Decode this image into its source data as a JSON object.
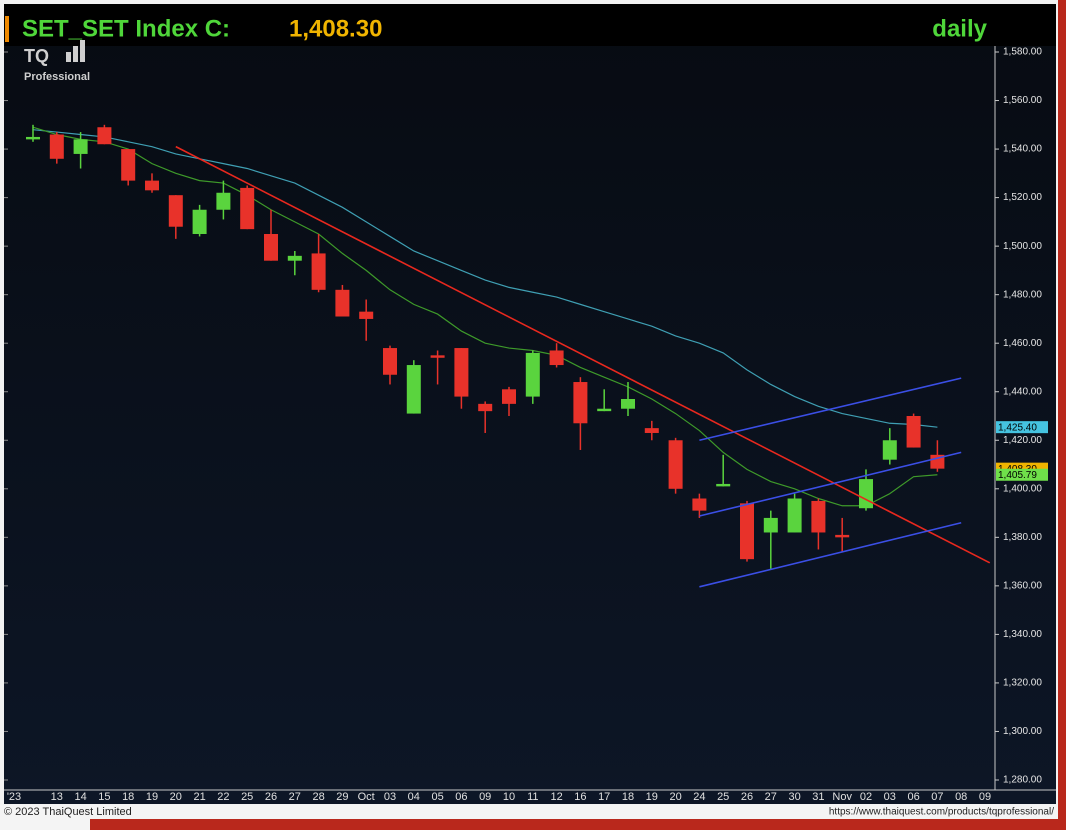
{
  "chart_data": {
    "type": "candlestick",
    "title": "SET_SET Index C:",
    "title_value": "1,408.30",
    "period": "daily",
    "logo": "TQ",
    "logo_sub": "Professional",
    "year_label": "'23",
    "footer_left": "© 2023 ThaiQuest Limited",
    "footer_right": "https://www.thaiquest.com/products/tqprofessional/",
    "categories": [
      null,
      "13",
      "14",
      "15",
      "18",
      "19",
      "20",
      "21",
      "22",
      "25",
      "26",
      "27",
      "28",
      "29",
      "Oct",
      "03",
      "04",
      "05",
      "06",
      "09",
      "10",
      "11",
      "12",
      "16",
      "17",
      "18",
      "19",
      "20",
      "24",
      "25",
      "26",
      "27",
      "30",
      "31",
      "Nov",
      "02",
      "03",
      "06",
      "07",
      "08",
      "09"
    ],
    "open": [
      1544,
      1546,
      1538,
      1549,
      1540,
      1527,
      1521,
      1505,
      1515,
      1524,
      1505,
      1494,
      1497,
      1482,
      1473,
      1458,
      1431,
      1455,
      1458,
      1435,
      1441,
      1438,
      1457,
      1444,
      1432,
      1433,
      1425,
      1420,
      1396,
      1401,
      1394,
      1382,
      1382,
      1395,
      1381,
      1392,
      1412,
      1430,
      1414,
      null,
      null
    ],
    "high": [
      1550,
      1547,
      1547,
      1550,
      1540,
      1530,
      1521,
      1517,
      1527,
      1525,
      1515,
      1498,
      1505,
      1484,
      1478,
      1459,
      1453,
      1457,
      1458,
      1436,
      1442,
      1457,
      1460,
      1446,
      1441,
      1444,
      1428,
      1421,
      1398,
      1414,
      1395,
      1391,
      1398,
      1396,
      1388,
      1408,
      1425,
      1431,
      1420,
      null,
      null
    ],
    "low": [
      1543,
      1534,
      1532,
      1542,
      1525,
      1522,
      1503,
      1504,
      1511,
      1507,
      1494,
      1488,
      1481,
      1471,
      1461,
      1443,
      1431,
      1443,
      1433,
      1423,
      1430,
      1435,
      1450,
      1416,
      1432,
      1430,
      1420,
      1398,
      1388,
      1401,
      1370,
      1367,
      1382,
      1375,
      1374,
      1391,
      1410,
      1417,
      1407,
      null,
      null
    ],
    "close": [
      1545,
      1536,
      1544,
      1542,
      1527,
      1523,
      1508,
      1515,
      1522,
      1507,
      1494,
      1496,
      1482,
      1471,
      1470,
      1447,
      1451,
      1454,
      1438,
      1432,
      1435,
      1456,
      1451,
      1427,
      1433,
      1437,
      1423,
      1400,
      1391,
      1402,
      1371,
      1388,
      1396,
      1382,
      1380,
      1404,
      1420,
      1417,
      1408.3,
      null,
      null
    ],
    "up_color": "#5ad43e",
    "down_color": "#e8322a",
    "moving_averages": [
      {
        "color": "#3f9fb3",
        "values": [
          1548,
          1547,
          1546,
          1545,
          1543,
          1541,
          1538,
          1536,
          1534,
          1532,
          1529,
          1526,
          1521,
          1516,
          1510,
          1504,
          1498,
          1494,
          1490,
          1486,
          1483,
          1481,
          1479,
          1476,
          1473,
          1470,
          1467,
          1463,
          1460,
          1456,
          1449,
          1443,
          1438,
          1434,
          1431,
          1429,
          1427,
          1426.5,
          1425.4,
          null,
          null
        ]
      },
      {
        "color": "#3e9a2a",
        "values": [
          1549,
          1546,
          1544,
          1543,
          1540,
          1534,
          1530,
          1527,
          1526,
          1521,
          1515,
          1510,
          1505,
          1497,
          1490,
          1482,
          1476,
          1472,
          1465,
          1460,
          1458,
          1457,
          1455,
          1450,
          1446,
          1442,
          1437,
          1431,
          1424,
          1415,
          1408,
          1403,
          1400,
          1396,
          1393,
          1393,
          1398,
          1405,
          1405.79,
          null,
          null
        ]
      }
    ],
    "trendlines": [
      {
        "color": "#e8281e",
        "x": [
          6,
          40.2
        ],
        "y": [
          1541,
          1369.5
        ]
      },
      {
        "color": "#3b4fe6",
        "x": [
          28,
          39
        ],
        "y": [
          1420,
          1445.6
        ]
      },
      {
        "color": "#3b4fe6",
        "x": [
          28,
          39
        ],
        "y": [
          1388.8,
          1415
        ]
      },
      {
        "color": "#3b4fe6",
        "x": [
          28,
          39
        ],
        "y": [
          1359.6,
          1386
        ]
      }
    ],
    "last_value_labels": [
      {
        "value": 1425.4,
        "label": "1,425.40",
        "color": "#45c3e0"
      },
      {
        "value": 1408.3,
        "label": "1,408.30",
        "color": "#f0b400"
      },
      {
        "value": 1405.79,
        "label": "1,405.79",
        "color": "#6fe04a"
      }
    ],
    "ylim": [
      1272,
      1588
    ],
    "yticks": [
      {
        "value": 1280,
        "label": "1,280.00"
      },
      {
        "value": 1300,
        "label": "1,300.00"
      },
      {
        "value": 1320,
        "label": "1,320.00"
      },
      {
        "value": 1340,
        "label": "1,340.00"
      },
      {
        "value": 1360,
        "label": "1,360.00"
      },
      {
        "value": 1380,
        "label": "1,380.00"
      },
      {
        "value": 1400,
        "label": "1,400.00"
      },
      {
        "value": 1420,
        "label": "1,420.00"
      },
      {
        "value": 1440,
        "label": "1,440.00"
      },
      {
        "value": 1460,
        "label": "1,460.00"
      },
      {
        "value": 1480,
        "label": "1,480.00"
      },
      {
        "value": 1500,
        "label": "1,500.00"
      },
      {
        "value": 1520,
        "label": "1,520.00"
      },
      {
        "value": 1540,
        "label": "1,540.00"
      },
      {
        "value": 1560,
        "label": "1,560.00"
      },
      {
        "value": 1580,
        "label": "1,580.00"
      }
    ]
  }
}
